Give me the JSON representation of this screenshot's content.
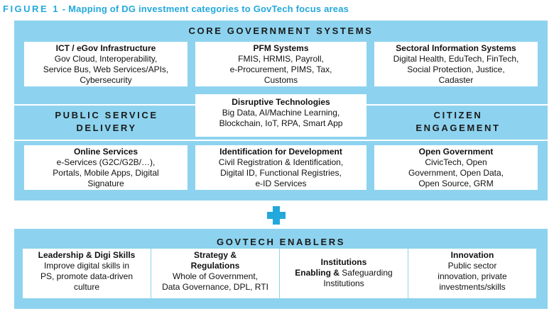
{
  "figure": {
    "label": "FIGURE 1",
    "caption": "- Mapping of DG investment categories to GovTech focus areas"
  },
  "colors": {
    "accent": "#23a8dc",
    "band": "#8dd3ef"
  },
  "core": {
    "title": "CORE GOVERNMENT SYSTEMS",
    "boxes": [
      {
        "heading": "ICT / eGov Infrastructure",
        "lines": [
          "Gov Cloud, Interoperability,",
          "Service Bus, Web Services/APIs,",
          "Cybersecurity"
        ]
      },
      {
        "heading": "PFM Systems",
        "lines": [
          "FMIS, HRMIS, Payroll,",
          "e-Procurement, PIMS, Tax,",
          "Customs"
        ]
      },
      {
        "heading": "Sectoral Information Systems",
        "lines": [
          "Digital Health, EduTech, FinTech,",
          "Social Protection, Justice,",
          "Cadaster"
        ]
      }
    ]
  },
  "disruptive": {
    "heading": "Disruptive Technologies",
    "lines": [
      "Big Data, AI/Machine Learning,",
      "Blockchain, IoT, RPA, Smart App"
    ]
  },
  "public_service": {
    "line1": "PUBLIC SERVICE",
    "line2": "DELIVERY"
  },
  "citizen": {
    "line1": "CITIZEN",
    "line2": "ENGAGEMENT"
  },
  "lower_boxes": [
    {
      "heading": "Online Services",
      "lines": [
        "e-Services (G2C/G2B/…),",
        "Portals, Mobile Apps, Digital",
        "Signature"
      ]
    },
    {
      "heading": "Identification for Development",
      "lines": [
        "Civil Registration & Identification,",
        "Digital ID, Functional Registries,",
        "e-ID Services"
      ]
    },
    {
      "heading": "Open Government",
      "lines": [
        "CivicTech, Open",
        "Government, Open Data,",
        "Open Source, GRM"
      ]
    }
  ],
  "enablers": {
    "title": "GOVTECH ENABLERS",
    "boxes": [
      {
        "heading": "Leadership & Digi Skills",
        "lines": [
          "Improve digital skills in",
          "PS, promote data-driven",
          "culture"
        ]
      },
      {
        "heading": "Strategy &",
        "heading2": "Regulations",
        "lines": [
          "Whole of Government,",
          "Data Governance, DPL, RTI"
        ]
      },
      {
        "heading": "Institutions",
        "heading_bold_prefix": "Enabling &",
        "heading_rest": " Safeguarding",
        "lines": [
          "Institutions"
        ]
      },
      {
        "heading": "Innovation",
        "lines": [
          "Public sector",
          "innovation, private",
          "investments/skills"
        ]
      }
    ]
  }
}
